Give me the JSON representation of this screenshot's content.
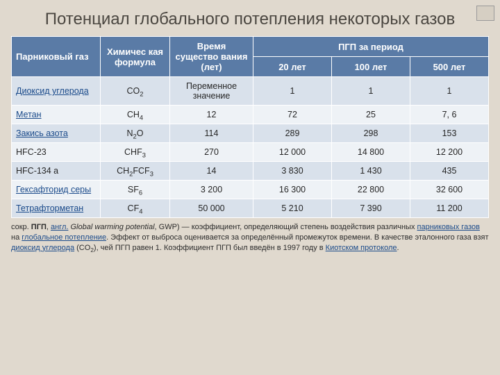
{
  "title": "Потенциал глобального потепления некоторых газов",
  "headers": {
    "gas": "Парниковый газ",
    "formula": "Химичес кая формула",
    "lifetime": "Время существо вания (лет)",
    "gwp_span": "ПГП за период",
    "p20": "20 лет",
    "p100": "100 лет",
    "p500": "500 лет"
  },
  "rows": [
    {
      "gas": "Диоксид углерода",
      "gas_link": true,
      "formula_html": "CO<sub>2</sub>",
      "lifetime": "Переменное значение",
      "p20": "1",
      "p100": "1",
      "p500": "1"
    },
    {
      "gas": "Метан",
      "gas_link": true,
      "formula_html": "CH<sub>4</sub>",
      "lifetime": "12",
      "p20": "72",
      "p100": "25",
      "p500": "7, 6"
    },
    {
      "gas": "Закись азота",
      "gas_link": true,
      "formula_html": "N<sub>2</sub>O",
      "lifetime": "114",
      "p20": "289",
      "p100": "298",
      "p500": "153"
    },
    {
      "gas": "HFC-23",
      "gas_link": false,
      "formula_html": "CHF<sub>3</sub>",
      "lifetime": "270",
      "p20": "12 000",
      "p100": "14 800",
      "p500": "12 200"
    },
    {
      "gas": "HFC-134 a",
      "gas_link": false,
      "formula_html": "CH<sub>2</sub>FCF<sub>3</sub>",
      "lifetime": "14",
      "p20": "3 830",
      "p100": "1 430",
      "p500": "435"
    },
    {
      "gas": "Гексафторид серы",
      "gas_link": true,
      "formula_html": "SF<sub>6</sub>",
      "lifetime": "3 200",
      "p20": "16 300",
      "p100": "22 800",
      "p500": "32 600"
    },
    {
      "gas": "Тетрафторметан",
      "gas_link": true,
      "formula_html": "CF<sub>4</sub>",
      "lifetime": "50 000",
      "p20": "5 210",
      "p100": "7 390",
      "p500": "11 200"
    }
  ],
  "footnote": {
    "pre": "сокр. ",
    "abbr": "ПГП",
    "sep1": ", ",
    "en_label": "англ.",
    "en_text": " Global warming potential",
    "post1": ", GWP) — коэффициент, определяющий степень воздействия различных ",
    "lnk1": "парниковых газов",
    "mid1": " на ",
    "lnk2": "глобальное потепление",
    "post2": ". Эффект от выброса оценивается за определённый промежуток времени. В качестве эталонного газа взят ",
    "lnk3": "диоксид  углерода",
    "post3": " (CO",
    "sub": "2",
    "post4": "), чей ПГП равен 1. Коэффициент ПГП был введён в 1997 году в ",
    "lnk4": "Киотском протоколе",
    "end": "."
  },
  "colwidths": {
    "gas": 128,
    "formula": 100,
    "lifetime": 120,
    "p": 113
  }
}
